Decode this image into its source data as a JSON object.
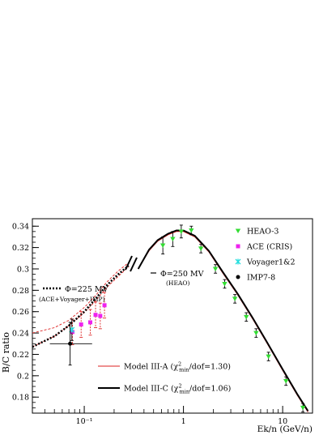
{
  "chart_data": {
    "type": "scatter",
    "xlabel": "Ek/n (GeV/n)",
    "ylabel": "B/C ratio",
    "x_scale": "log",
    "xlim": [
      0.03,
      20
    ],
    "ylim": [
      0.165,
      0.347
    ],
    "y_ticks": [
      0.18,
      0.2,
      0.22,
      0.24,
      0.26,
      0.28,
      0.3,
      0.32,
      0.34
    ],
    "y_tick_labels": [
      "0.18",
      "0.2",
      "0.22",
      "0.24",
      "0.26",
      "0.28",
      "0.3",
      "0.32",
      "0.34"
    ],
    "x_ticks": [
      0.1,
      1,
      10
    ],
    "x_tick_labels": [
      "10⁻¹",
      "1",
      "10"
    ],
    "series": [
      {
        "name": "HEAO-3",
        "marker": "triangle-down",
        "color": "#33dd33",
        "points": [
          {
            "x": 0.62,
            "y": 0.322,
            "err": 0.008
          },
          {
            "x": 0.78,
            "y": 0.328,
            "err": 0.007
          },
          {
            "x": 0.95,
            "y": 0.335,
            "err": 0.006
          },
          {
            "x": 1.2,
            "y": 0.336,
            "err": 0.004
          },
          {
            "x": 1.5,
            "y": 0.319,
            "err": 0.004
          },
          {
            "x": 2.1,
            "y": 0.3,
            "err": 0.004
          },
          {
            "x": 2.6,
            "y": 0.286,
            "err": 0.004
          },
          {
            "x": 3.3,
            "y": 0.272,
            "err": 0.004
          },
          {
            "x": 4.3,
            "y": 0.255,
            "err": 0.004
          },
          {
            "x": 5.4,
            "y": 0.24,
            "err": 0.004
          },
          {
            "x": 7.2,
            "y": 0.218,
            "err": 0.004
          },
          {
            "x": 10.8,
            "y": 0.195,
            "err": 0.004
          },
          {
            "x": 16.0,
            "y": 0.17,
            "err": 0.004
          }
        ]
      },
      {
        "name": "ACE (CRIS)",
        "marker": "square",
        "color": "#ee22ee",
        "points": [
          {
            "x": 0.076,
            "y": 0.241,
            "err": 0.012
          },
          {
            "x": 0.093,
            "y": 0.248,
            "err": 0.012
          },
          {
            "x": 0.115,
            "y": 0.25,
            "err": 0.012
          },
          {
            "x": 0.13,
            "y": 0.257,
            "err": 0.012
          },
          {
            "x": 0.145,
            "y": 0.256,
            "err": 0.012
          },
          {
            "x": 0.16,
            "y": 0.266,
            "err": 0.012
          }
        ]
      },
      {
        "name": "Voyager1&2",
        "marker": "star",
        "color": "#22dddd",
        "points": [
          {
            "x": 0.075,
            "y": 0.243,
            "err": 0.01
          }
        ]
      },
      {
        "name": "IMP7-8",
        "marker": "circle",
        "color": "#000000",
        "points": [
          {
            "x": 0.072,
            "y": 0.23,
            "err": 0.02,
            "xlow": 0.045,
            "xhigh": 0.12
          }
        ]
      }
    ],
    "models": [
      {
        "name": "Model III-A",
        "label_main": "Model III-A (χ",
        "label_sup": "2",
        "label_sub": "min",
        "label_tail": "/dof=1.30)",
        "color": "#dd2222",
        "style": "solid-thin",
        "points": [
          [
            0.35,
            0.3
          ],
          [
            0.45,
            0.317
          ],
          [
            0.55,
            0.326
          ],
          [
            0.7,
            0.332
          ],
          [
            0.85,
            0.335
          ],
          [
            1.0,
            0.335
          ],
          [
            1.3,
            0.33
          ],
          [
            1.8,
            0.316
          ],
          [
            2.5,
            0.296
          ],
          [
            3.5,
            0.276
          ],
          [
            5,
            0.253
          ],
          [
            7,
            0.23
          ],
          [
            10,
            0.205
          ],
          [
            14,
            0.182
          ],
          [
            18,
            0.166
          ]
        ]
      },
      {
        "name": "Model III-C",
        "label_main": "Model III-C (χ",
        "label_sup": "2",
        "label_sub": "min",
        "label_tail": "/dof=1.06)",
        "color": "#000000",
        "style": "solid-thick",
        "points": [
          [
            0.35,
            0.3
          ],
          [
            0.45,
            0.318
          ],
          [
            0.55,
            0.327
          ],
          [
            0.7,
            0.333
          ],
          [
            0.85,
            0.336
          ],
          [
            1.0,
            0.336
          ],
          [
            1.3,
            0.331
          ],
          [
            1.8,
            0.317
          ],
          [
            2.5,
            0.297
          ],
          [
            3.5,
            0.277
          ],
          [
            5,
            0.254
          ],
          [
            7,
            0.231
          ],
          [
            10,
            0.206
          ],
          [
            14,
            0.183
          ],
          [
            18,
            0.167
          ]
        ]
      }
    ],
    "low_energy_curves": [
      {
        "color": "#dd2222",
        "style": "dashed",
        "points": [
          [
            0.03,
            0.24
          ],
          [
            0.05,
            0.245
          ],
          [
            0.07,
            0.252
          ],
          [
            0.1,
            0.264
          ],
          [
            0.13,
            0.275
          ],
          [
            0.17,
            0.288
          ],
          [
            0.22,
            0.298
          ],
          [
            0.28,
            0.306
          ]
        ]
      },
      {
        "color": "#dd2222",
        "style": "dashed",
        "points": [
          [
            0.03,
            0.227
          ],
          [
            0.05,
            0.237
          ],
          [
            0.07,
            0.247
          ],
          [
            0.1,
            0.259
          ],
          [
            0.13,
            0.27
          ],
          [
            0.17,
            0.283
          ],
          [
            0.22,
            0.293
          ],
          [
            0.28,
            0.302
          ]
        ]
      },
      {
        "color": "#000000",
        "style": "dotted",
        "points": [
          [
            0.03,
            0.227
          ],
          [
            0.05,
            0.237
          ],
          [
            0.07,
            0.247
          ],
          [
            0.1,
            0.26
          ],
          [
            0.13,
            0.272
          ],
          [
            0.17,
            0.285
          ],
          [
            0.22,
            0.295
          ],
          [
            0.28,
            0.303
          ]
        ]
      }
    ],
    "annotations": {
      "phi225": "Φ=225 MV",
      "phi225_sub": "(ACE+Voyager+IMP)",
      "phi250": "Φ=250 MV",
      "phi250_sub": "(HEAO)"
    },
    "legend_placement": "top-right",
    "grid": false
  }
}
